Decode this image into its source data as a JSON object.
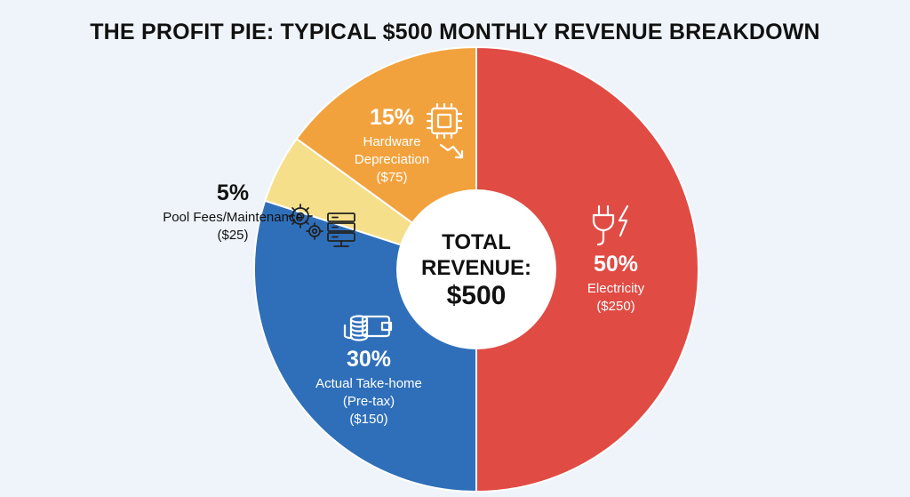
{
  "colors": {
    "background": "#eef4f9",
    "electricity": "#e04b44",
    "take_home": "#2f6fba",
    "pool_fees": "#f5df8a",
    "hardware": "#f2a23d",
    "icon_stroke": "#ffffff",
    "icon_dark": "#222222"
  },
  "chart_data": {
    "type": "pie",
    "variant": "donut",
    "title": "THE PROFIT PIE: TYPICAL $500 MONTHLY REVENUE BREAKDOWN",
    "center_label": [
      "TOTAL",
      "REVENUE:",
      "$500"
    ],
    "total": 500,
    "slices": [
      {
        "name_lines": [
          "Electricity"
        ],
        "value": 250,
        "percent_label": "50%",
        "amount_label": "($250)",
        "color": "#e04b44",
        "icon": "plug-lightning-icon"
      },
      {
        "name_lines": [
          "Actual Take-home",
          "(Pre-tax)"
        ],
        "value": 150,
        "percent_label": "30%",
        "amount_label": "($150)",
        "color": "#2f6fba",
        "icon": "coins-wallet-icon"
      },
      {
        "name_lines": [
          "Pool Fees/Maintenance"
        ],
        "value": 25,
        "percent_label": "5%",
        "amount_label": "($25)",
        "color": "#f5df8a",
        "icon": "gears-server-icon",
        "label_outside": true
      },
      {
        "name_lines": [
          "Hardware",
          "Depreciation"
        ],
        "value": 75,
        "percent_label": "15%",
        "amount_label": "($75)",
        "color": "#f2a23d",
        "icon": "chip-trend-down-icon"
      }
    ]
  }
}
